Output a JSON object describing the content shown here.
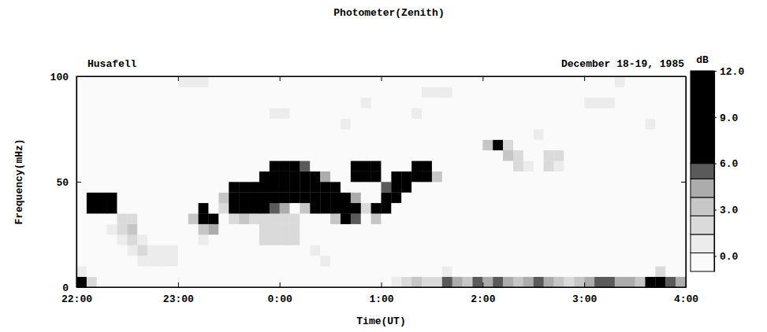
{
  "chart_data": {
    "type": "heatmap",
    "title": "Photometer(Zenith)",
    "annotations": [
      "Husafell",
      "December 18-19, 1985"
    ],
    "x_label": "Time(UT)",
    "y_label": "Frequency(mHz)",
    "xlim": [
      22,
      28
    ],
    "xticks": [
      {
        "value": 22,
        "label": "22:00"
      },
      {
        "value": 23,
        "label": "23:00"
      },
      {
        "value": 24,
        "label": "0:00"
      },
      {
        "value": 25,
        "label": "1:00"
      },
      {
        "value": 26,
        "label": "2:00"
      },
      {
        "value": 27,
        "label": "3:00"
      },
      {
        "value": 28,
        "label": "4:00"
      }
    ],
    "ylim": [
      0,
      100
    ],
    "yticks": [
      0,
      50,
      100
    ],
    "x": [
      22,
      22.1,
      22.2,
      22.3,
      22.4,
      22.5,
      22.6,
      22.7,
      22.8,
      22.9,
      23,
      23.1,
      23.2,
      23.3,
      23.4,
      23.5,
      23.6,
      23.7,
      23.8,
      23.9,
      24,
      24.1,
      24.2,
      24.3,
      24.4,
      24.5,
      24.6,
      24.7,
      24.8,
      24.9,
      25,
      25.1,
      25.2,
      25.3,
      25.4,
      25.5,
      25.6,
      25.7,
      25.8,
      25.9,
      26,
      26.1,
      26.2,
      26.3,
      26.4,
      26.5,
      26.6,
      26.7,
      26.8,
      26.9,
      27,
      27.1,
      27.2,
      27.3,
      27.4,
      27.5,
      27.6,
      27.7,
      27.8,
      27.9
    ],
    "y": [
      0,
      5,
      10,
      15,
      20,
      25,
      30,
      35,
      40,
      45,
      50,
      55,
      60,
      65,
      70,
      75,
      80,
      85,
      90,
      95
    ],
    "z": [
      [
        6,
        2,
        0,
        0,
        0,
        0,
        0,
        0,
        0,
        0,
        0,
        0,
        0,
        0,
        0,
        0,
        0,
        0,
        0,
        0,
        0,
        0,
        0,
        0,
        0,
        0,
        0,
        0,
        0,
        0,
        0,
        1,
        2,
        3,
        2,
        2,
        5,
        4,
        3,
        5,
        4,
        5,
        4,
        3,
        4,
        5,
        4,
        3,
        2,
        3,
        4,
        5,
        5,
        4,
        4,
        3,
        6,
        7,
        5,
        4
      ],
      [
        1,
        0,
        0,
        0,
        0,
        0,
        0,
        0,
        0,
        0,
        0,
        0,
        0,
        0,
        0,
        0,
        0,
        0,
        0,
        0,
        0,
        0,
        0,
        0,
        0,
        0,
        0,
        0,
        0,
        0,
        0,
        0,
        0,
        0,
        0,
        0,
        1,
        0,
        0,
        0,
        0,
        0,
        0,
        0,
        0,
        0,
        0,
        0,
        0,
        0,
        0,
        0,
        0,
        0,
        0,
        0,
        0,
        2,
        0,
        0
      ],
      [
        0,
        0,
        0,
        0,
        0,
        0,
        1,
        1,
        1,
        1,
        0,
        0,
        0,
        0,
        0,
        0,
        0,
        0,
        0,
        0,
        0,
        0,
        0,
        0,
        1,
        0,
        0,
        0,
        0,
        0,
        0,
        0,
        0,
        0,
        0,
        0,
        0,
        0,
        0,
        0,
        0,
        0,
        0,
        0,
        0,
        0,
        0,
        0,
        0,
        0,
        0,
        0,
        0,
        0,
        0,
        0,
        0,
        0,
        0,
        0
      ],
      [
        0,
        0,
        0,
        0,
        0,
        1,
        2,
        1,
        1,
        1,
        0,
        0,
        0,
        0,
        0,
        0,
        0,
        0,
        0,
        0,
        0,
        0,
        0,
        1,
        0,
        0,
        0,
        0,
        0,
        0,
        0,
        0,
        0,
        0,
        0,
        0,
        0,
        0,
        0,
        0,
        0,
        0,
        0,
        0,
        0,
        0,
        0,
        0,
        0,
        0,
        0,
        0,
        0,
        0,
        0,
        0,
        0,
        0,
        0,
        0
      ],
      [
        0,
        0,
        0,
        0,
        1,
        2,
        1,
        0,
        0,
        0,
        0,
        0,
        1,
        0,
        0,
        0,
        0,
        0,
        2,
        2,
        2,
        2,
        0,
        0,
        0,
        0,
        0,
        0,
        0,
        0,
        0,
        0,
        0,
        0,
        0,
        0,
        0,
        0,
        0,
        0,
        0,
        0,
        0,
        0,
        0,
        0,
        0,
        0,
        0,
        0,
        0,
        0,
        0,
        0,
        0,
        0,
        0,
        0,
        0,
        0
      ],
      [
        0,
        0,
        0,
        1,
        2,
        3,
        0,
        0,
        0,
        0,
        0,
        0,
        3,
        4,
        0,
        0,
        0,
        0,
        2,
        2,
        2,
        2,
        0,
        0,
        0,
        0,
        0,
        0,
        0,
        0,
        0,
        0,
        0,
        0,
        0,
        0,
        0,
        0,
        0,
        0,
        0,
        0,
        0,
        0,
        0,
        0,
        0,
        0,
        0,
        0,
        0,
        0,
        0,
        0,
        0,
        0,
        0,
        0,
        0,
        0
      ],
      [
        0,
        0,
        0,
        0,
        2,
        2,
        0,
        0,
        0,
        0,
        0,
        3,
        8,
        7,
        0,
        2,
        3,
        2,
        2,
        2,
        2,
        2,
        0,
        0,
        0,
        3,
        7,
        5,
        0,
        3,
        0,
        0,
        0,
        0,
        0,
        0,
        0,
        0,
        0,
        0,
        0,
        0,
        0,
        0,
        0,
        0,
        0,
        0,
        0,
        0,
        0,
        0,
        0,
        0,
        0,
        0,
        0,
        0,
        0,
        0
      ],
      [
        0,
        6,
        10,
        9,
        0,
        0,
        0,
        0,
        0,
        0,
        0,
        0,
        6,
        0,
        2,
        8,
        9,
        8,
        7,
        5,
        4,
        0,
        3,
        6,
        8,
        9,
        9,
        8,
        2,
        6,
        8,
        0,
        0,
        0,
        0,
        0,
        0,
        0,
        0,
        0,
        0,
        0,
        0,
        0,
        0,
        0,
        0,
        0,
        0,
        0,
        0,
        0,
        0,
        0,
        0,
        0,
        0,
        0,
        0,
        0
      ],
      [
        0,
        8,
        9,
        7,
        0,
        0,
        0,
        0,
        0,
        0,
        0,
        0,
        0,
        0,
        3,
        9,
        10,
        9,
        9,
        9,
        8,
        7,
        9,
        10,
        9,
        9,
        6,
        4,
        0,
        0,
        9,
        9,
        0,
        0,
        0,
        0,
        0,
        0,
        0,
        0,
        0,
        0,
        0,
        0,
        0,
        0,
        0,
        0,
        0,
        0,
        0,
        0,
        0,
        0,
        0,
        0,
        0,
        0,
        0,
        0
      ],
      [
        0,
        0,
        0,
        0,
        0,
        0,
        0,
        0,
        0,
        0,
        0,
        0,
        0,
        0,
        0,
        7,
        8,
        7,
        8,
        10,
        10,
        9,
        10,
        9,
        8,
        6,
        0,
        0,
        0,
        0,
        5,
        9,
        8,
        0,
        0,
        0,
        0,
        0,
        0,
        0,
        0,
        0,
        0,
        0,
        0,
        0,
        0,
        0,
        0,
        0,
        0,
        0,
        0,
        0,
        0,
        0,
        0,
        0,
        0,
        0
      ],
      [
        0,
        0,
        0,
        0,
        0,
        0,
        0,
        0,
        0,
        0,
        0,
        0,
        0,
        0,
        0,
        0,
        0,
        0,
        6,
        9,
        10,
        10,
        9,
        6,
        4,
        0,
        0,
        7,
        9,
        8,
        0,
        6,
        9,
        9,
        8,
        3,
        0,
        0,
        0,
        0,
        0,
        0,
        0,
        0,
        0,
        0,
        0,
        0,
        0,
        0,
        0,
        0,
        0,
        0,
        0,
        0,
        0,
        0,
        0,
        0
      ],
      [
        0,
        0,
        0,
        0,
        0,
        0,
        0,
        0,
        0,
        0,
        0,
        0,
        0,
        0,
        0,
        0,
        0,
        0,
        0,
        6,
        8,
        9,
        5,
        0,
        0,
        0,
        0,
        8,
        9,
        7,
        0,
        0,
        0,
        9,
        7,
        0,
        0,
        0,
        0,
        0,
        0,
        0,
        0,
        2,
        1,
        0,
        2,
        1,
        0,
        0,
        0,
        0,
        0,
        0,
        0,
        0,
        0,
        0,
        0,
        0
      ],
      [
        0,
        0,
        0,
        0,
        0,
        0,
        0,
        0,
        0,
        0,
        0,
        0,
        0,
        0,
        0,
        0,
        0,
        0,
        0,
        0,
        0,
        0,
        0,
        0,
        0,
        0,
        0,
        0,
        0,
        0,
        0,
        0,
        0,
        0,
        0,
        0,
        0,
        0,
        0,
        0,
        0,
        0,
        3,
        2,
        0,
        0,
        2,
        2,
        0,
        0,
        0,
        0,
        0,
        0,
        0,
        0,
        0,
        0,
        0,
        0
      ],
      [
        0,
        0,
        0,
        0,
        0,
        0,
        0,
        0,
        0,
        0,
        0,
        0,
        0,
        0,
        0,
        0,
        0,
        0,
        0,
        0,
        0,
        0,
        0,
        0,
        0,
        0,
        0,
        0,
        0,
        0,
        0,
        0,
        0,
        0,
        0,
        0,
        0,
        0,
        0,
        0,
        3,
        8,
        2,
        0,
        0,
        0,
        0,
        0,
        0,
        0,
        0,
        0,
        0,
        0,
        0,
        0,
        0,
        0,
        0,
        0
      ],
      [
        0,
        0,
        0,
        0,
        0,
        0,
        0,
        0,
        0,
        0,
        0,
        0,
        0,
        0,
        0,
        0,
        0,
        0,
        0,
        0,
        0,
        0,
        0,
        0,
        0,
        0,
        0,
        0,
        0,
        0,
        0,
        0,
        0,
        0,
        0,
        0,
        0,
        0,
        0,
        0,
        0,
        0,
        0,
        0,
        0,
        1,
        0,
        0,
        0,
        0,
        0,
        0,
        0,
        0,
        0,
        0,
        0,
        0,
        0,
        0
      ],
      [
        0,
        0,
        0,
        0,
        0,
        0,
        0,
        0,
        0,
        0,
        0,
        0,
        0,
        0,
        0,
        0,
        0,
        0,
        0,
        0,
        0,
        0,
        0,
        0,
        0,
        0,
        1,
        0,
        0,
        0,
        0,
        0,
        0,
        0,
        0,
        0,
        0,
        0,
        0,
        0,
        0,
        0,
        0,
        0,
        0,
        0,
        0,
        0,
        0,
        0,
        0,
        0,
        0,
        0,
        0,
        0,
        1,
        0,
        0,
        0
      ],
      [
        0,
        0,
        0,
        0,
        0,
        0,
        0,
        0,
        0,
        0,
        0,
        0,
        0,
        0,
        0,
        0,
        0,
        0,
        0,
        1,
        1,
        0,
        0,
        0,
        0,
        0,
        0,
        0,
        0,
        0,
        0,
        0,
        0,
        1,
        0,
        0,
        0,
        0,
        0,
        0,
        0,
        0,
        0,
        0,
        0,
        0,
        0,
        0,
        0,
        0,
        0,
        0,
        0,
        0,
        0,
        0,
        0,
        0,
        0,
        0
      ],
      [
        0,
        0,
        0,
        0,
        0,
        0,
        0,
        0,
        0,
        0,
        0,
        0,
        0,
        0,
        0,
        0,
        0,
        0,
        0,
        0,
        0,
        0,
        0,
        0,
        0,
        0,
        0,
        0,
        1,
        0,
        0,
        0,
        0,
        0,
        0,
        0,
        0,
        0,
        0,
        0,
        0,
        0,
        0,
        0,
        0,
        0,
        0,
        0,
        0,
        0,
        1,
        1,
        1,
        0,
        0,
        0,
        0,
        0,
        0,
        0
      ],
      [
        0,
        0,
        0,
        0,
        0,
        0,
        0,
        0,
        0,
        0,
        0,
        0,
        0,
        0,
        0,
        0,
        0,
        0,
        0,
        0,
        0,
        0,
        0,
        0,
        0,
        0,
        0,
        0,
        0,
        0,
        0,
        0,
        0,
        0,
        1,
        1,
        1,
        0,
        0,
        0,
        0,
        0,
        0,
        0,
        0,
        0,
        0,
        0,
        0,
        0,
        0,
        0,
        0,
        0,
        0,
        0,
        0,
        0,
        0,
        0
      ],
      [
        0,
        0,
        0,
        0,
        0,
        0,
        0,
        0,
        0,
        0,
        1,
        1,
        1,
        0,
        0,
        0,
        0,
        0,
        0,
        0,
        0,
        0,
        0,
        0,
        0,
        0,
        0,
        0,
        0,
        0,
        0,
        0,
        0,
        0,
        0,
        0,
        0,
        0,
        0,
        0,
        0,
        0,
        0,
        0,
        0,
        0,
        0,
        0,
        0,
        0,
        0,
        0,
        0,
        1,
        0,
        0,
        0,
        0,
        0,
        0
      ]
    ],
    "colorbar": {
      "title": "dB",
      "range": [
        -1,
        12
      ],
      "ticks": [
        {
          "value": 0,
          "label": "0.0"
        },
        {
          "value": 3,
          "label": "3.0"
        },
        {
          "value": 6,
          "label": "6.0"
        },
        {
          "value": 9,
          "label": "9.0"
        },
        {
          "value": 12,
          "label": "12.0"
        }
      ],
      "levels": [
        0.2,
        1.4,
        2.6,
        3.8,
        5.0,
        6.0
      ],
      "colors": [
        "#fafafa",
        "#ececec",
        "#dadada",
        "#c6c6c6",
        "#acacac",
        "#5a5a5a",
        "#000000"
      ]
    }
  }
}
